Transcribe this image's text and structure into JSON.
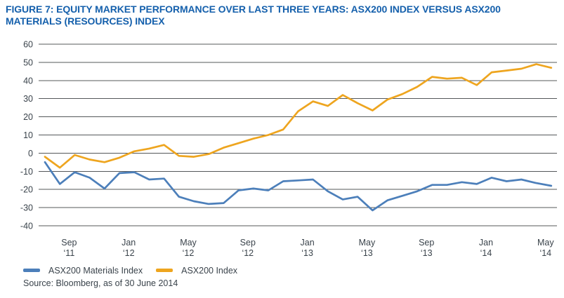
{
  "page": {
    "title": "FIGURE 7: EQUITY MARKET PERFORMANCE OVER LAST THREE YEARS: ASX200 INDEX VERSUS ASX200 MATERIALS (RESOURCES) INDEX"
  },
  "legend": {
    "items": [
      {
        "label": "ASX200 Materials Index",
        "color": "#4C7FBA"
      },
      {
        "label": "ASX200 Index",
        "color": "#EEA51F"
      }
    ]
  },
  "source": {
    "text": "Source: Bloomberg, as of 30 June 2014"
  },
  "chart_data": {
    "type": "line",
    "title": "FIGURE 7: EQUITY MARKET PERFORMANCE OVER LAST THREE YEARS: ASX200 INDEX VERSUS ASX200 MATERIALS (RESOURCES) INDEX",
    "xlabel": "",
    "ylabel": "",
    "ylim": [
      -40,
      60
    ],
    "y_ticks": [
      60,
      50,
      40,
      30,
      20,
      10,
      0,
      -10,
      -20,
      -30,
      -40
    ],
    "grid": "horizontal",
    "grid_color": "#54585A",
    "legend_position": "bottom-left",
    "x": [
      "Jul '11",
      "Aug '11",
      "Sep '11",
      "Oct '11",
      "Nov '11",
      "Dec '11",
      "Jan '12",
      "Feb '12",
      "Mar '12",
      "Apr '12",
      "May '12",
      "Jun '12",
      "Jul '12",
      "Aug '12",
      "Sep '12",
      "Oct '12",
      "Nov '12",
      "Dec '12",
      "Jan '13",
      "Feb '13",
      "Mar '13",
      "Apr '13",
      "May '13",
      "Jun '13",
      "Jul '13",
      "Aug '13",
      "Sep '13",
      "Oct '13",
      "Nov '13",
      "Dec '13",
      "Jan '14",
      "Feb '14",
      "Mar '14",
      "Apr '14",
      "May '14"
    ],
    "x_axis_tick_indices": [
      2,
      6,
      10,
      14,
      18,
      22,
      26,
      30,
      34
    ],
    "x_axis_tick_labels": [
      {
        "month": "Sep",
        "year": "‘11"
      },
      {
        "month": "Jan",
        "year": "‘12"
      },
      {
        "month": "May",
        "year": "‘12"
      },
      {
        "month": "Sep",
        "year": "‘12"
      },
      {
        "month": "Jan",
        "year": "‘13"
      },
      {
        "month": "May",
        "year": "‘13"
      },
      {
        "month": "Sep",
        "year": "‘13"
      },
      {
        "month": "Jan",
        "year": "‘14"
      },
      {
        "month": "May",
        "year": "‘14"
      }
    ],
    "series": [
      {
        "name": "ASX200 Materials Index",
        "color": "#4C7FBA",
        "values": [
          -5,
          -17,
          -10.5,
          -13.5,
          -19.5,
          -11,
          -10.5,
          -14.5,
          -14,
          -24,
          -26.5,
          -28,
          -27.5,
          -20.5,
          -19.5,
          -20.5,
          -15.5,
          -15,
          -14.5,
          -21,
          -25.5,
          -24,
          -31.5,
          -26,
          -23.5,
          -21,
          -17.5,
          -17.5,
          -16,
          -17,
          -13.5,
          -15.5,
          -14.5,
          -16.5,
          -18
        ]
      },
      {
        "name": "ASX200 Index",
        "color": "#EEA51F",
        "values": [
          -2,
          -8,
          -1,
          -3.5,
          -5,
          -2.5,
          1,
          2.5,
          4.5,
          -1.5,
          -2,
          -0.5,
          3,
          5.5,
          8,
          10,
          13,
          23,
          28.5,
          26,
          32,
          27.5,
          23.5,
          29.5,
          32.5,
          36.5,
          42,
          41,
          41.5,
          37.5,
          44.5,
          45.5,
          46.5,
          49,
          47
        ]
      }
    ]
  }
}
